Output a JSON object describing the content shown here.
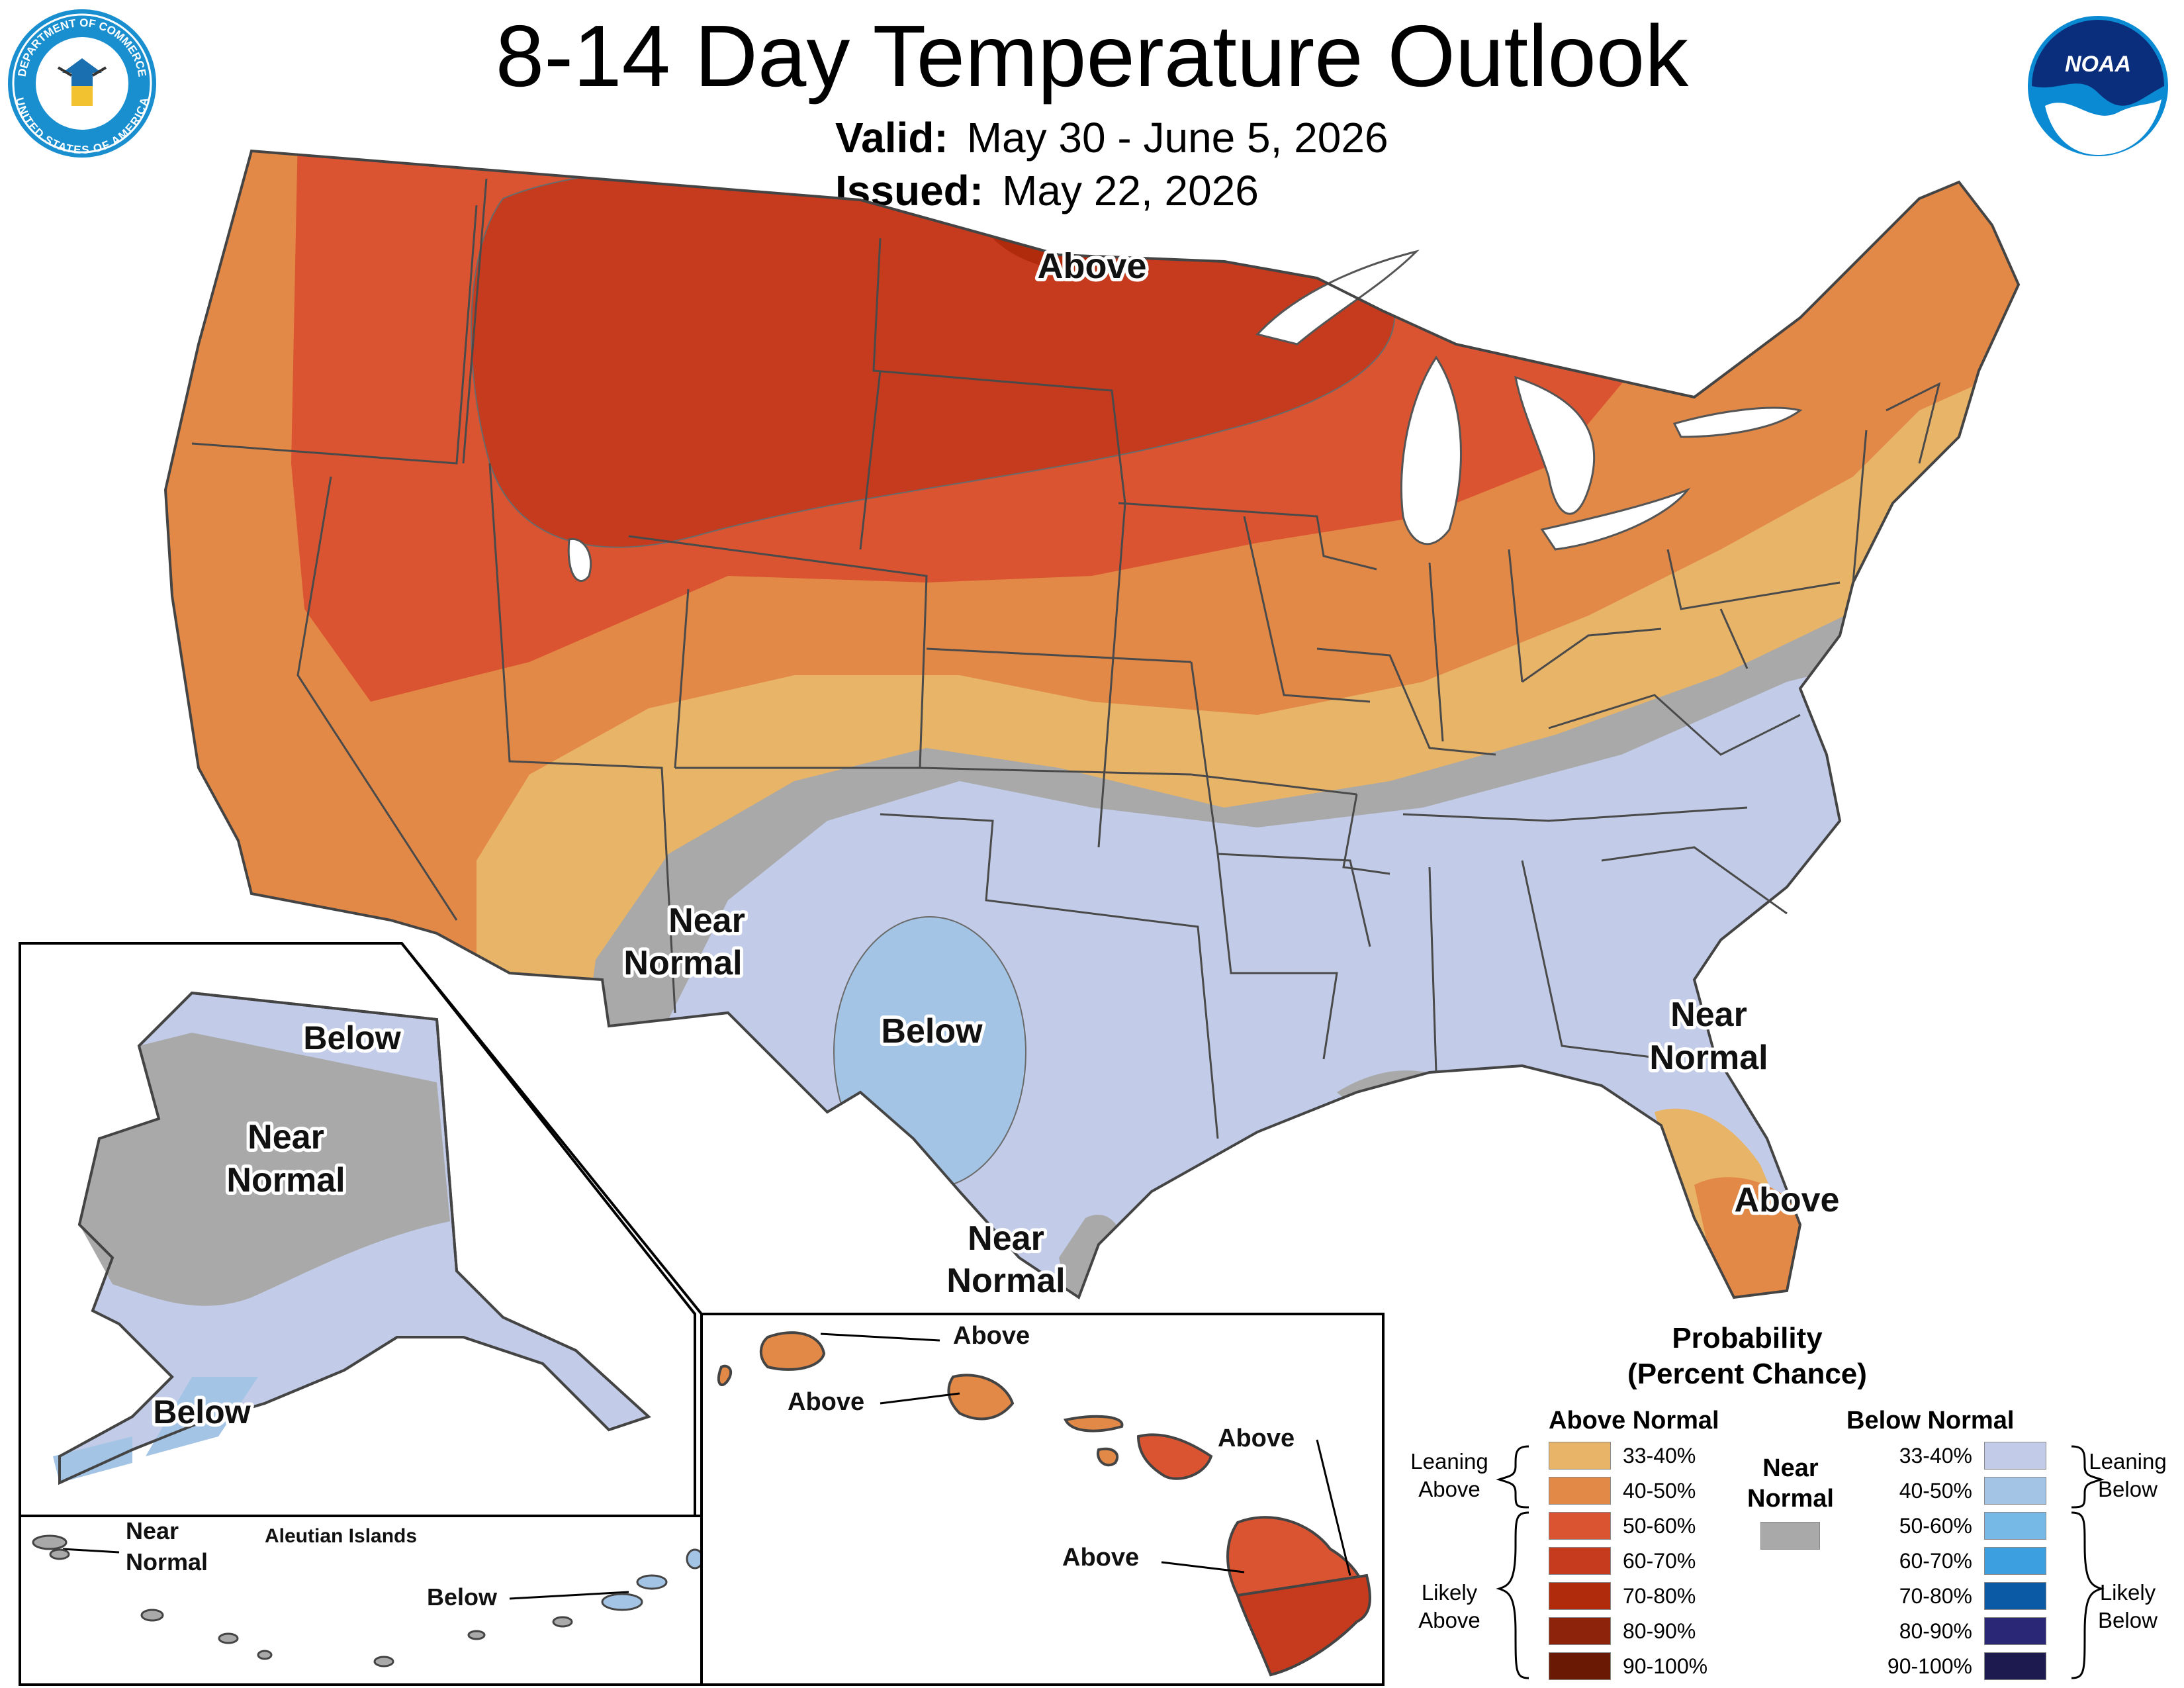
{
  "header": {
    "title": "8-14 Day Temperature Outlook",
    "valid_label": "Valid:",
    "valid_value": "May 30 - June 5, 2026",
    "issued_label": "Issued:",
    "issued_value": "May 22, 2026",
    "seal_text_top": "DEPARTMENT OF COMMERCE",
    "seal_text_bottom": "UNITED STATES OF AMERICA",
    "noaa_logo_text": "NOAA"
  },
  "map_labels": {
    "conus_above": "Above",
    "conus_near_normal_sw_1": "Near",
    "conus_near_normal_sw_2": "Normal",
    "conus_below": "Below",
    "conus_near_normal_se_1": "Near",
    "conus_near_normal_se_2": "Normal",
    "conus_above_fl": "Above",
    "conus_near_normal_tx_1": "Near",
    "conus_near_normal_tx_2": "Normal"
  },
  "alaska": {
    "below_north": "Below",
    "near_normal_1": "Near",
    "near_normal_2": "Normal",
    "below_south": "Below"
  },
  "aleutians": {
    "title": "Aleutian Islands",
    "near_1": "Near",
    "near_2": "Normal",
    "below": "Below"
  },
  "hawaii": {
    "kauai": "Above",
    "oahu": "Above",
    "maui": "Above",
    "big_island": "Above"
  },
  "legend": {
    "title_1": "Probability",
    "title_2": "(Percent Chance)",
    "above_header": "Above Normal",
    "below_header": "Below Normal",
    "near_normal_1": "Near",
    "near_normal_2": "Normal",
    "leaning_above_1": "Leaning",
    "leaning_above_2": "Above",
    "likely_above_1": "Likely",
    "likely_above_2": "Above",
    "leaning_below_1": "Leaning",
    "leaning_below_2": "Below",
    "likely_below_1": "Likely",
    "likely_below_2": "Below",
    "above_rows": [
      {
        "label": "33-40%",
        "color": "#e8b468"
      },
      {
        "label": "40-50%",
        "color": "#e38947"
      },
      {
        "label": "50-60%",
        "color": "#db5431"
      },
      {
        "label": "60-70%",
        "color": "#c63a1d"
      },
      {
        "label": "70-80%",
        "color": "#b02a0c"
      },
      {
        "label": "80-90%",
        "color": "#8c230a"
      },
      {
        "label": "90-100%",
        "color": "#6a1a04"
      }
    ],
    "below_rows": [
      {
        "label": "33-40%",
        "color": "#c2cce8"
      },
      {
        "label": "40-50%",
        "color": "#a3c4e4"
      },
      {
        "label": "50-60%",
        "color": "#76b9e6"
      },
      {
        "label": "60-70%",
        "color": "#3b9fe0"
      },
      {
        "label": "70-80%",
        "color": "#0b5aa5"
      },
      {
        "label": "80-90%",
        "color": "#2a2777"
      },
      {
        "label": "90-100%",
        "color": "#1c1a4f"
      }
    ],
    "near_normal_color": "#a9a9a9"
  }
}
